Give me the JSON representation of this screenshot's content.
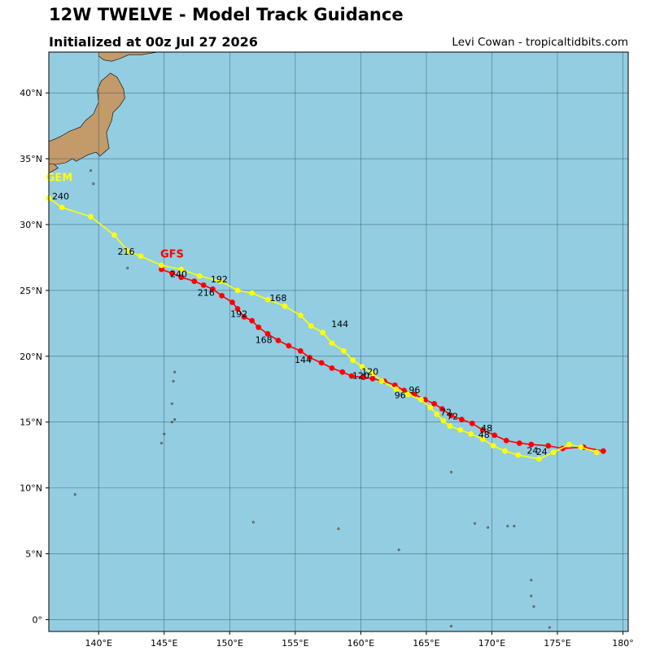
{
  "header": {
    "title": "12W TWELVE - Model Track Guidance",
    "subtitle": "Initialized at 00z Jul 27 2026",
    "credit": "Levi Cowan - tropicaltidbits.com"
  },
  "colors": {
    "ocean": "#92cde2",
    "land": "#c39a6a",
    "grid": "#3a5a66",
    "gfs": "#ff0000",
    "gem": "#ffff00"
  },
  "axes": {
    "lon_range": [
      136.2,
      180.4
    ],
    "lat_range": [
      -0.9,
      43.1
    ],
    "lon_ticks": [
      {
        "value": 140,
        "label": "140°E"
      },
      {
        "value": 145,
        "label": "145°E"
      },
      {
        "value": 150,
        "label": "150°E"
      },
      {
        "value": 155,
        "label": "155°E"
      },
      {
        "value": 160,
        "label": "160°E"
      },
      {
        "value": 165,
        "label": "165°E"
      },
      {
        "value": 170,
        "label": "170°E"
      },
      {
        "value": 175,
        "label": "175°E"
      },
      {
        "value": 180,
        "label": "180°"
      }
    ],
    "lat_ticks": [
      {
        "value": 0,
        "label": "0°"
      },
      {
        "value": 5,
        "label": "5°N"
      },
      {
        "value": 10,
        "label": "10°N"
      },
      {
        "value": 15,
        "label": "15°N"
      },
      {
        "value": 20,
        "label": "20°N"
      },
      {
        "value": 25,
        "label": "25°N"
      },
      {
        "value": 30,
        "label": "30°N"
      },
      {
        "value": 35,
        "label": "35°N"
      },
      {
        "value": 40,
        "label": "40°N"
      }
    ],
    "grid": true
  },
  "chart_data": {
    "type": "scatter",
    "x_unit": "longitude (°E)",
    "y_unit": "latitude (°N)",
    "series": [
      {
        "name": "GFS",
        "color": "#ff0000",
        "points": [
          [
            178.5,
            12.8
          ],
          [
            177.0,
            13.1
          ],
          [
            175.4,
            13.0
          ],
          [
            174.3,
            13.2
          ],
          [
            173.0,
            13.3
          ],
          [
            172.1,
            13.4
          ],
          [
            171.1,
            13.6
          ],
          [
            170.2,
            14.0
          ],
          [
            169.3,
            14.4
          ],
          [
            168.5,
            14.9
          ],
          [
            167.7,
            15.2
          ],
          [
            166.9,
            15.5
          ],
          [
            166.2,
            16.0
          ],
          [
            165.6,
            16.4
          ],
          [
            164.9,
            16.7
          ],
          [
            164.1,
            17.1
          ],
          [
            163.3,
            17.4
          ],
          [
            162.6,
            17.8
          ],
          [
            161.8,
            18.1
          ],
          [
            160.9,
            18.3
          ],
          [
            160.2,
            18.4
          ],
          [
            159.3,
            18.5
          ],
          [
            158.6,
            18.8
          ],
          [
            157.8,
            19.1
          ],
          [
            157.0,
            19.5
          ],
          [
            156.1,
            19.9
          ],
          [
            155.4,
            20.4
          ],
          [
            154.5,
            20.8
          ],
          [
            153.7,
            21.2
          ],
          [
            152.9,
            21.7
          ],
          [
            152.2,
            22.2
          ],
          [
            151.7,
            22.7
          ],
          [
            151.1,
            23.0
          ],
          [
            150.6,
            23.6
          ],
          [
            150.2,
            24.1
          ],
          [
            149.4,
            24.6
          ],
          [
            148.7,
            25.1
          ],
          [
            148.0,
            25.4
          ],
          [
            147.3,
            25.7
          ],
          [
            146.3,
            26.0
          ],
          [
            145.6,
            26.3
          ],
          [
            144.8,
            26.6
          ]
        ],
        "labels": [
          {
            "text": "24",
            "lon": 173.1,
            "lat": 12.6
          },
          {
            "text": "48",
            "lon": 169.4,
            "lat": 13.8
          },
          {
            "text": "72",
            "lon": 167.0,
            "lat": 15.2
          },
          {
            "text": "96",
            "lon": 163.0,
            "lat": 16.8
          },
          {
            "text": "120",
            "lon": 160.0,
            "lat": 18.3
          },
          {
            "text": "144",
            "lon": 155.6,
            "lat": 19.5
          },
          {
            "text": "168",
            "lon": 152.6,
            "lat": 21.0
          },
          {
            "text": "192",
            "lon": 150.7,
            "lat": 23.0
          },
          {
            "text": "216",
            "lon": 148.2,
            "lat": 24.6
          },
          {
            "text": "240",
            "lon": 146.1,
            "lat": 26.0
          }
        ],
        "name_label": {
          "lon": 145.6,
          "lat": 27.5
        }
      },
      {
        "name": "GEM",
        "color": "#ffff00",
        "points": [
          [
            178.0,
            12.7
          ],
          [
            176.8,
            13.1
          ],
          [
            175.9,
            13.3
          ],
          [
            174.7,
            12.7
          ],
          [
            173.6,
            12.2
          ],
          [
            172.0,
            12.5
          ],
          [
            171.0,
            12.8
          ],
          [
            170.1,
            13.2
          ],
          [
            169.3,
            13.7
          ],
          [
            168.4,
            14.1
          ],
          [
            167.6,
            14.4
          ],
          [
            166.8,
            14.7
          ],
          [
            166.3,
            15.1
          ],
          [
            165.8,
            15.6
          ],
          [
            165.3,
            16.1
          ],
          [
            164.6,
            16.7
          ],
          [
            163.6,
            17.1
          ],
          [
            162.7,
            17.5
          ],
          [
            161.6,
            18.1
          ],
          [
            160.9,
            18.7
          ],
          [
            160.1,
            19.2
          ],
          [
            159.4,
            19.7
          ],
          [
            158.7,
            20.4
          ],
          [
            157.8,
            21.0
          ],
          [
            157.1,
            21.8
          ],
          [
            156.2,
            22.3
          ],
          [
            155.4,
            23.1
          ],
          [
            154.2,
            23.8
          ],
          [
            152.9,
            24.3
          ],
          [
            151.7,
            24.8
          ],
          [
            150.6,
            25.0
          ],
          [
            149.3,
            25.7
          ],
          [
            147.7,
            26.1
          ],
          [
            146.3,
            26.6
          ],
          [
            144.8,
            26.9
          ],
          [
            143.2,
            27.6
          ],
          [
            142.2,
            28.0
          ],
          [
            141.2,
            29.2
          ],
          [
            139.4,
            30.6
          ],
          [
            137.2,
            31.3
          ],
          [
            136.2,
            32.0
          ]
        ],
        "labels": [
          {
            "text": "24",
            "lon": 173.8,
            "lat": 12.5
          },
          {
            "text": "48",
            "lon": 169.6,
            "lat": 14.3
          },
          {
            "text": "72",
            "lon": 166.5,
            "lat": 15.5
          },
          {
            "text": "96",
            "lon": 164.1,
            "lat": 17.2
          },
          {
            "text": "120",
            "lon": 160.7,
            "lat": 18.6
          },
          {
            "text": "144",
            "lon": 158.4,
            "lat": 22.2
          },
          {
            "text": "168",
            "lon": 153.7,
            "lat": 24.2
          },
          {
            "text": "192",
            "lon": 149.2,
            "lat": 25.6
          },
          {
            "text": "216",
            "lon": 142.1,
            "lat": 27.7
          },
          {
            "text": "240",
            "lon": 137.1,
            "lat": 31.9
          }
        ],
        "name_label": {
          "lon": 137.0,
          "lat": 33.3
        }
      }
    ]
  }
}
